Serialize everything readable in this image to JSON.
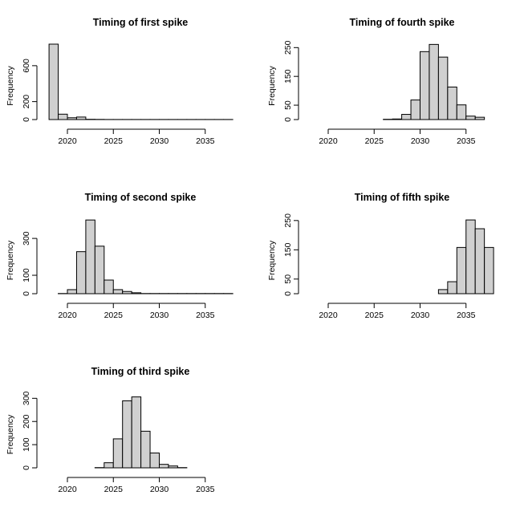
{
  "chart_data": [
    {
      "type": "bar",
      "title": "Timing of first spike",
      "xlabel": "",
      "ylabel": "Frequency",
      "xlim": [
        2018,
        2038
      ],
      "ylim": [
        0,
        840
      ],
      "x_ticks": [
        2020,
        2025,
        2030,
        2035
      ],
      "y_ticks": [
        0,
        200,
        600
      ],
      "bin_width": 1,
      "bins": [
        {
          "x0": 2018,
          "value": 840
        },
        {
          "x0": 2019,
          "value": 60
        },
        {
          "x0": 2020,
          "value": 20
        },
        {
          "x0": 2021,
          "value": 28
        },
        {
          "x0": 2022,
          "value": 3
        },
        {
          "x0": 2023,
          "value": 2
        },
        {
          "x0": 2024,
          "value": 1
        },
        {
          "x0": 2025,
          "value": 1
        },
        {
          "x0": 2026,
          "value": 1
        },
        {
          "x0": 2027,
          "value": 1
        },
        {
          "x0": 2028,
          "value": 1
        },
        {
          "x0": 2029,
          "value": 1
        },
        {
          "x0": 2030,
          "value": 1
        },
        {
          "x0": 2031,
          "value": 1
        },
        {
          "x0": 2032,
          "value": 1
        },
        {
          "x0": 2033,
          "value": 1
        },
        {
          "x0": 2034,
          "value": 1
        },
        {
          "x0": 2035,
          "value": 1
        },
        {
          "x0": 2036,
          "value": 1
        },
        {
          "x0": 2037,
          "value": 1
        }
      ]
    },
    {
      "type": "bar",
      "title": "Timing of fourth spike",
      "xlabel": "",
      "ylabel": "Frequency",
      "xlim": [
        2018,
        2038
      ],
      "ylim": [
        0,
        262
      ],
      "x_ticks": [
        2020,
        2025,
        2030,
        2035
      ],
      "y_ticks": [
        0,
        50,
        150,
        250
      ],
      "bin_width": 1,
      "bins": [
        {
          "x0": 2018,
          "value": 0
        },
        {
          "x0": 2019,
          "value": 0
        },
        {
          "x0": 2020,
          "value": 0
        },
        {
          "x0": 2021,
          "value": 0
        },
        {
          "x0": 2022,
          "value": 0
        },
        {
          "x0": 2023,
          "value": 0
        },
        {
          "x0": 2024,
          "value": 0
        },
        {
          "x0": 2025,
          "value": 0
        },
        {
          "x0": 2026,
          "value": 1
        },
        {
          "x0": 2027,
          "value": 2
        },
        {
          "x0": 2028,
          "value": 18
        },
        {
          "x0": 2029,
          "value": 68
        },
        {
          "x0": 2030,
          "value": 236
        },
        {
          "x0": 2031,
          "value": 261
        },
        {
          "x0": 2032,
          "value": 217
        },
        {
          "x0": 2033,
          "value": 113
        },
        {
          "x0": 2034,
          "value": 51
        },
        {
          "x0": 2035,
          "value": 12
        },
        {
          "x0": 2036,
          "value": 8
        }
      ]
    },
    {
      "type": "bar",
      "title": "Timing of second spike",
      "xlabel": "",
      "ylabel": "Frequency",
      "xlim": [
        2018,
        2038
      ],
      "ylim": [
        0,
        405
      ],
      "x_ticks": [
        2020,
        2025,
        2030,
        2035
      ],
      "y_ticks": [
        0,
        100,
        300
      ],
      "bin_width": 1,
      "bins": [
        {
          "x0": 2019,
          "value": 1
        },
        {
          "x0": 2020,
          "value": 22
        },
        {
          "x0": 2021,
          "value": 228
        },
        {
          "x0": 2022,
          "value": 400
        },
        {
          "x0": 2023,
          "value": 258
        },
        {
          "x0": 2024,
          "value": 74
        },
        {
          "x0": 2025,
          "value": 22
        },
        {
          "x0": 2026,
          "value": 12
        },
        {
          "x0": 2027,
          "value": 5
        },
        {
          "x0": 2028,
          "value": 1
        },
        {
          "x0": 2029,
          "value": 1
        },
        {
          "x0": 2030,
          "value": 1
        },
        {
          "x0": 2031,
          "value": 1
        },
        {
          "x0": 2032,
          "value": 1
        },
        {
          "x0": 2033,
          "value": 1
        },
        {
          "x0": 2034,
          "value": 1
        },
        {
          "x0": 2035,
          "value": 1
        },
        {
          "x0": 2036,
          "value": 1
        },
        {
          "x0": 2037,
          "value": 1
        }
      ]
    },
    {
      "type": "bar",
      "title": "Timing of fifth spike",
      "xlabel": "",
      "ylabel": "Frequency",
      "xlim": [
        2018,
        2038
      ],
      "ylim": [
        0,
        255
      ],
      "x_ticks": [
        2020,
        2025,
        2030,
        2035
      ],
      "y_ticks": [
        0,
        50,
        150,
        250
      ],
      "bin_width": 1,
      "bins": [
        {
          "x0": 2018,
          "value": 0
        },
        {
          "x0": 2019,
          "value": 0
        },
        {
          "x0": 2020,
          "value": 0
        },
        {
          "x0": 2021,
          "value": 0
        },
        {
          "x0": 2022,
          "value": 0
        },
        {
          "x0": 2023,
          "value": 0
        },
        {
          "x0": 2024,
          "value": 0
        },
        {
          "x0": 2025,
          "value": 0
        },
        {
          "x0": 2026,
          "value": 0
        },
        {
          "x0": 2027,
          "value": 0
        },
        {
          "x0": 2028,
          "value": 0
        },
        {
          "x0": 2029,
          "value": 0
        },
        {
          "x0": 2030,
          "value": 0
        },
        {
          "x0": 2031,
          "value": 0
        },
        {
          "x0": 2032,
          "value": 14
        },
        {
          "x0": 2033,
          "value": 41
        },
        {
          "x0": 2034,
          "value": 158
        },
        {
          "x0": 2035,
          "value": 252
        },
        {
          "x0": 2036,
          "value": 222
        },
        {
          "x0": 2037,
          "value": 158
        }
      ]
    },
    {
      "type": "bar",
      "title": "Timing of third spike",
      "xlabel": "",
      "ylabel": "Frequency",
      "xlim": [
        2018,
        2038
      ],
      "ylim": [
        0,
        322
      ],
      "x_ticks": [
        2020,
        2025,
        2030,
        2035
      ],
      "y_ticks": [
        0,
        100,
        200,
        300
      ],
      "bin_width": 1,
      "bins": [
        {
          "x0": 2018,
          "value": 0
        },
        {
          "x0": 2019,
          "value": 0
        },
        {
          "x0": 2020,
          "value": 0
        },
        {
          "x0": 2021,
          "value": 0
        },
        {
          "x0": 2022,
          "value": 0
        },
        {
          "x0": 2023,
          "value": 1
        },
        {
          "x0": 2024,
          "value": 22
        },
        {
          "x0": 2025,
          "value": 125
        },
        {
          "x0": 2026,
          "value": 289
        },
        {
          "x0": 2027,
          "value": 306
        },
        {
          "x0": 2028,
          "value": 158
        },
        {
          "x0": 2029,
          "value": 64
        },
        {
          "x0": 2030,
          "value": 15
        },
        {
          "x0": 2031,
          "value": 8
        },
        {
          "x0": 2032,
          "value": 1
        },
        {
          "x0": 2033,
          "value": 0
        },
        {
          "x0": 2034,
          "value": 0
        },
        {
          "x0": 2035,
          "value": 0
        },
        {
          "x0": 2036,
          "value": 0
        },
        {
          "x0": 2037,
          "value": 0
        }
      ]
    }
  ],
  "colors": {
    "bar_fill": "#d0d0d0",
    "bar_stroke": "#000000",
    "background": "#ffffff"
  }
}
